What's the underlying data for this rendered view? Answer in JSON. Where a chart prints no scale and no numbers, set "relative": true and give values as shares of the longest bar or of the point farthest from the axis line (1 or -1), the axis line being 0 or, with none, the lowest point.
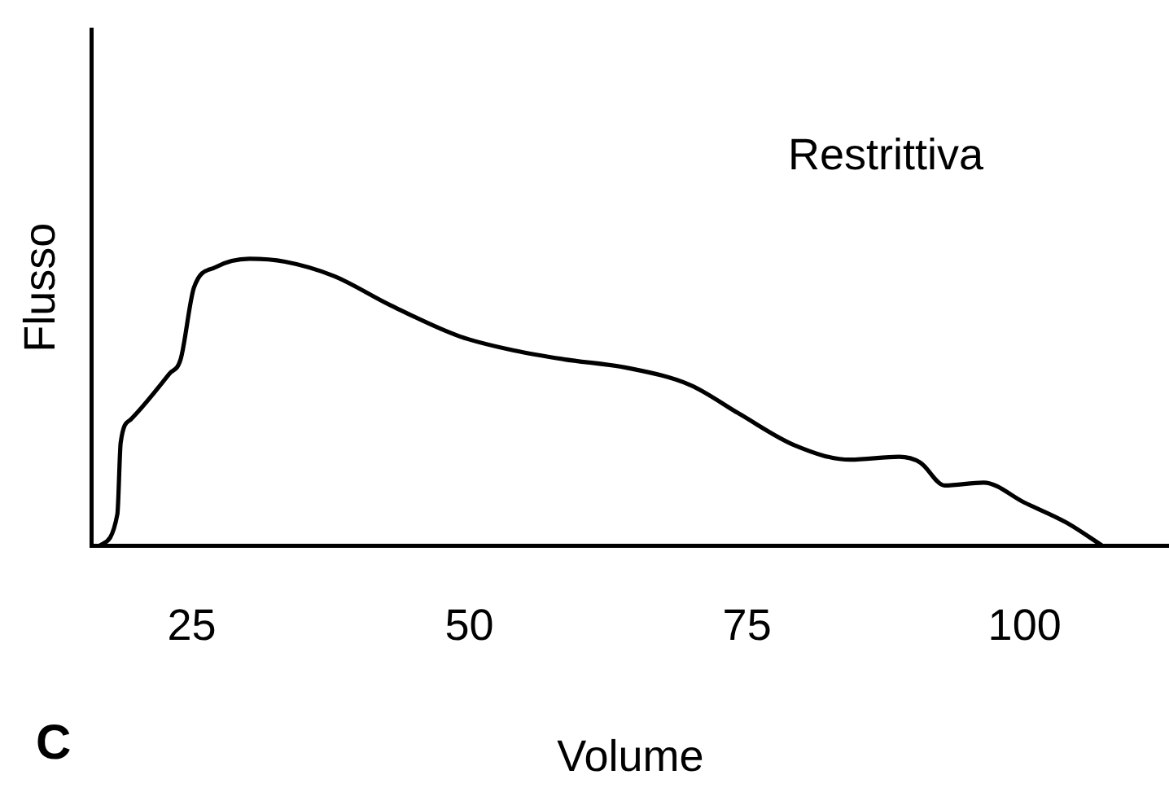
{
  "chart_data": {
    "type": "line",
    "relative": true,
    "xlabel": "Volume",
    "ylabel": "Flusso",
    "annotations": [
      "Restrittiva",
      "C"
    ],
    "xlim": [
      16,
      113
    ],
    "xticks": [
      25,
      50,
      75,
      100
    ],
    "grid": false,
    "legend": false,
    "marker": "none",
    "line_style": "solid",
    "series": [
      {
        "color": "#000000",
        "x": [
          16.7,
          18.3,
          18.6,
          19.5,
          23.0,
          24.0,
          25.2,
          27.1,
          30.2,
          33.4,
          37.8,
          42.8,
          49.1,
          54.1,
          58.5,
          64.2,
          69.9,
          74.3,
          79.3,
          84.3,
          88.7,
          90.6,
          92.8,
          96.3,
          100.0,
          103.8,
          107.0
        ],
        "values": [
          0,
          0.11,
          0.36,
          0.44,
          0.6,
          0.65,
          0.9,
          0.97,
          1.0,
          0.99,
          0.94,
          0.84,
          0.73,
          0.68,
          0.65,
          0.62,
          0.56,
          0.46,
          0.35,
          0.3,
          0.31,
          0.29,
          0.21,
          0.22,
          0.15,
          0.08,
          0
        ]
      }
    ]
  }
}
